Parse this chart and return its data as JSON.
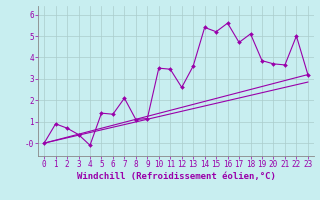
{
  "xlabel": "Windchill (Refroidissement éolien,°C)",
  "background_color": "#c8eef0",
  "line_color": "#9900aa",
  "grid_color": "#aacccc",
  "xlim": [
    -0.5,
    23.5
  ],
  "ylim": [
    -0.6,
    6.4
  ],
  "xticks": [
    0,
    1,
    2,
    3,
    4,
    5,
    6,
    7,
    8,
    9,
    10,
    11,
    12,
    13,
    14,
    15,
    16,
    17,
    18,
    19,
    20,
    21,
    22,
    23
  ],
  "yticks": [
    0,
    1,
    2,
    3,
    4,
    5,
    6
  ],
  "ytick_labels": [
    "-0",
    "1",
    "2",
    "3",
    "4",
    "5",
    "6"
  ],
  "series1_x": [
    0,
    1,
    2,
    3,
    4,
    5,
    6,
    7,
    8,
    9,
    10,
    11,
    12,
    13,
    14,
    15,
    16,
    17,
    18,
    19,
    20,
    21,
    22,
    23
  ],
  "series1_y": [
    0.0,
    0.9,
    0.7,
    0.4,
    -0.1,
    1.4,
    1.35,
    2.1,
    1.1,
    1.15,
    3.5,
    3.45,
    2.6,
    3.6,
    5.4,
    5.2,
    5.6,
    4.7,
    5.1,
    3.85,
    3.7,
    3.65,
    5.0,
    3.2
  ],
  "series2_x": [
    0,
    23
  ],
  "series2_y": [
    0.0,
    2.85
  ],
  "series3_x": [
    0,
    23
  ],
  "series3_y": [
    0.0,
    3.2
  ],
  "font_size_xlabel": 6.5,
  "font_size_ticks": 5.5,
  "marker": "D",
  "marker_size": 2.0,
  "linewidth": 0.8
}
